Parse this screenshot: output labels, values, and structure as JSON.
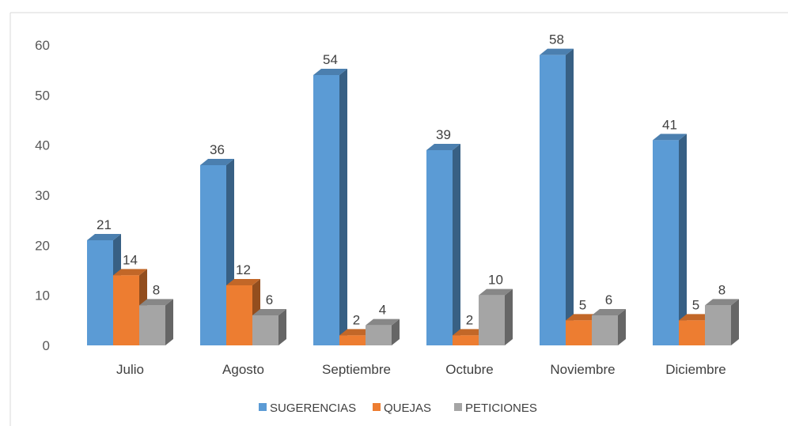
{
  "chart_data": {
    "type": "bar",
    "categories": [
      "Julio",
      "Agosto",
      "Septiembre",
      "Octubre",
      "Noviembre",
      "Diciembre"
    ],
    "series": [
      {
        "name": "SUGERENCIAS",
        "color": "#5B9BD5",
        "values": [
          21,
          36,
          54,
          39,
          58,
          41
        ]
      },
      {
        "name": "QUEJAS",
        "color": "#ED7D31",
        "values": [
          14,
          12,
          2,
          2,
          5,
          5
        ]
      },
      {
        "name": "PETICIONES",
        "color": "#A5A5A5",
        "values": [
          8,
          6,
          4,
          10,
          6,
          8
        ]
      }
    ],
    "ylim": [
      0,
      60
    ],
    "yticks": [
      0,
      10,
      20,
      30,
      40,
      50,
      60
    ],
    "grid": false,
    "legend_position": "bottom",
    "style": "3d-clustered-column"
  }
}
